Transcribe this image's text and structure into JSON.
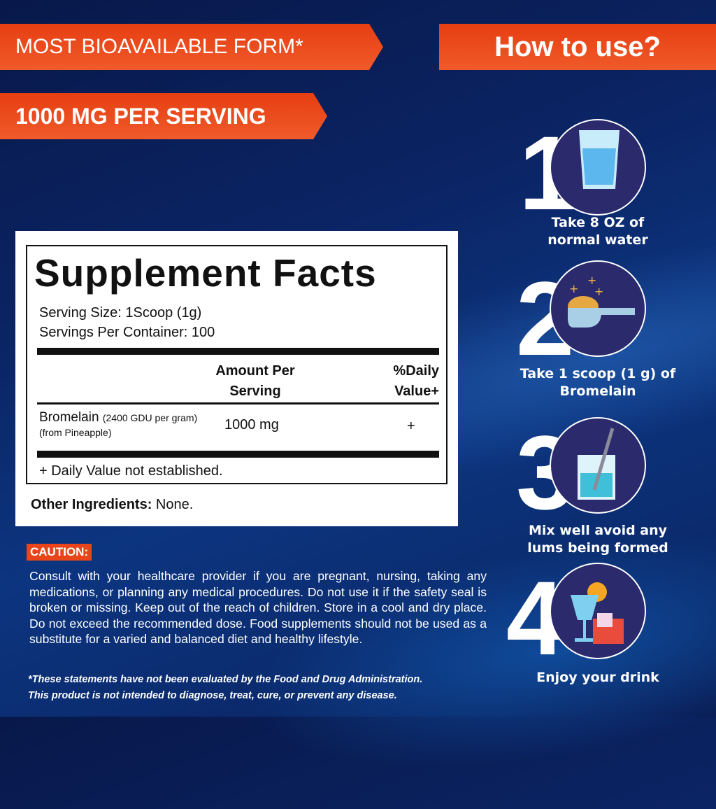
{
  "banners": {
    "bioavailable": "MOST BIOAVAILABLE FORM*",
    "serving": "1000 MG PER SERVING",
    "how_to_use": "How to use?"
  },
  "steps": [
    {
      "number": "1",
      "icon": "water-glass-icon",
      "text_line1": "Take  8 OZ  of",
      "text_line2": "normal water"
    },
    {
      "number": "2",
      "icon": "scoop-powder-icon",
      "text_line1": "Take 1 scoop (1 g) of",
      "text_line2": "Bromelain"
    },
    {
      "number": "3",
      "icon": "mixing-beaker-icon",
      "text_line1": "Mix well avoid any",
      "text_line2": "lums being formed"
    },
    {
      "number": "4",
      "icon": "drinks-icon",
      "text_line1": "Enjoy your drink",
      "text_line2": ""
    }
  ],
  "facts": {
    "title": "Supplement Facts",
    "serving_size": "Serving Size: 1Scoop (1g)",
    "servings_per_container": "Servings Per Container: 100",
    "col_amount_1": "Amount Per",
    "col_amount_2": "Serving",
    "col_dv_1": "%Daily",
    "col_dv_2": "Value+",
    "row": {
      "name": "Bromelain",
      "detail": "(2400 GDU per gram)",
      "source": "(from Pineapple)",
      "amount": "1000 mg",
      "dv": "+"
    },
    "footnote": "+ Daily Value not established.",
    "other_label": "Other Ingredients:",
    "other_value": " None."
  },
  "caution": {
    "label": "CAUTION:",
    "text": "Consult with your healthcare provider if you are pregnant, nursing, taking any medications, or planning any medical procedures. Do not use it if the safety seal is broken or missing. Keep out of the reach of children. Store in a cool and dry place. Do not exceed the recommended dose. Food supplements should not be used as a substitute for a varied and balanced diet and healthy lifestyle."
  },
  "disclaimer": {
    "line1": "*These statements have not been evaluated by the Food and Drug Administration.",
    "line2": "This product is not intended to diagnose, treat, cure, or prevent any disease."
  },
  "colors": {
    "accent": "#e8461a",
    "background": "#0b2464",
    "circle": "#2b2a6c"
  }
}
